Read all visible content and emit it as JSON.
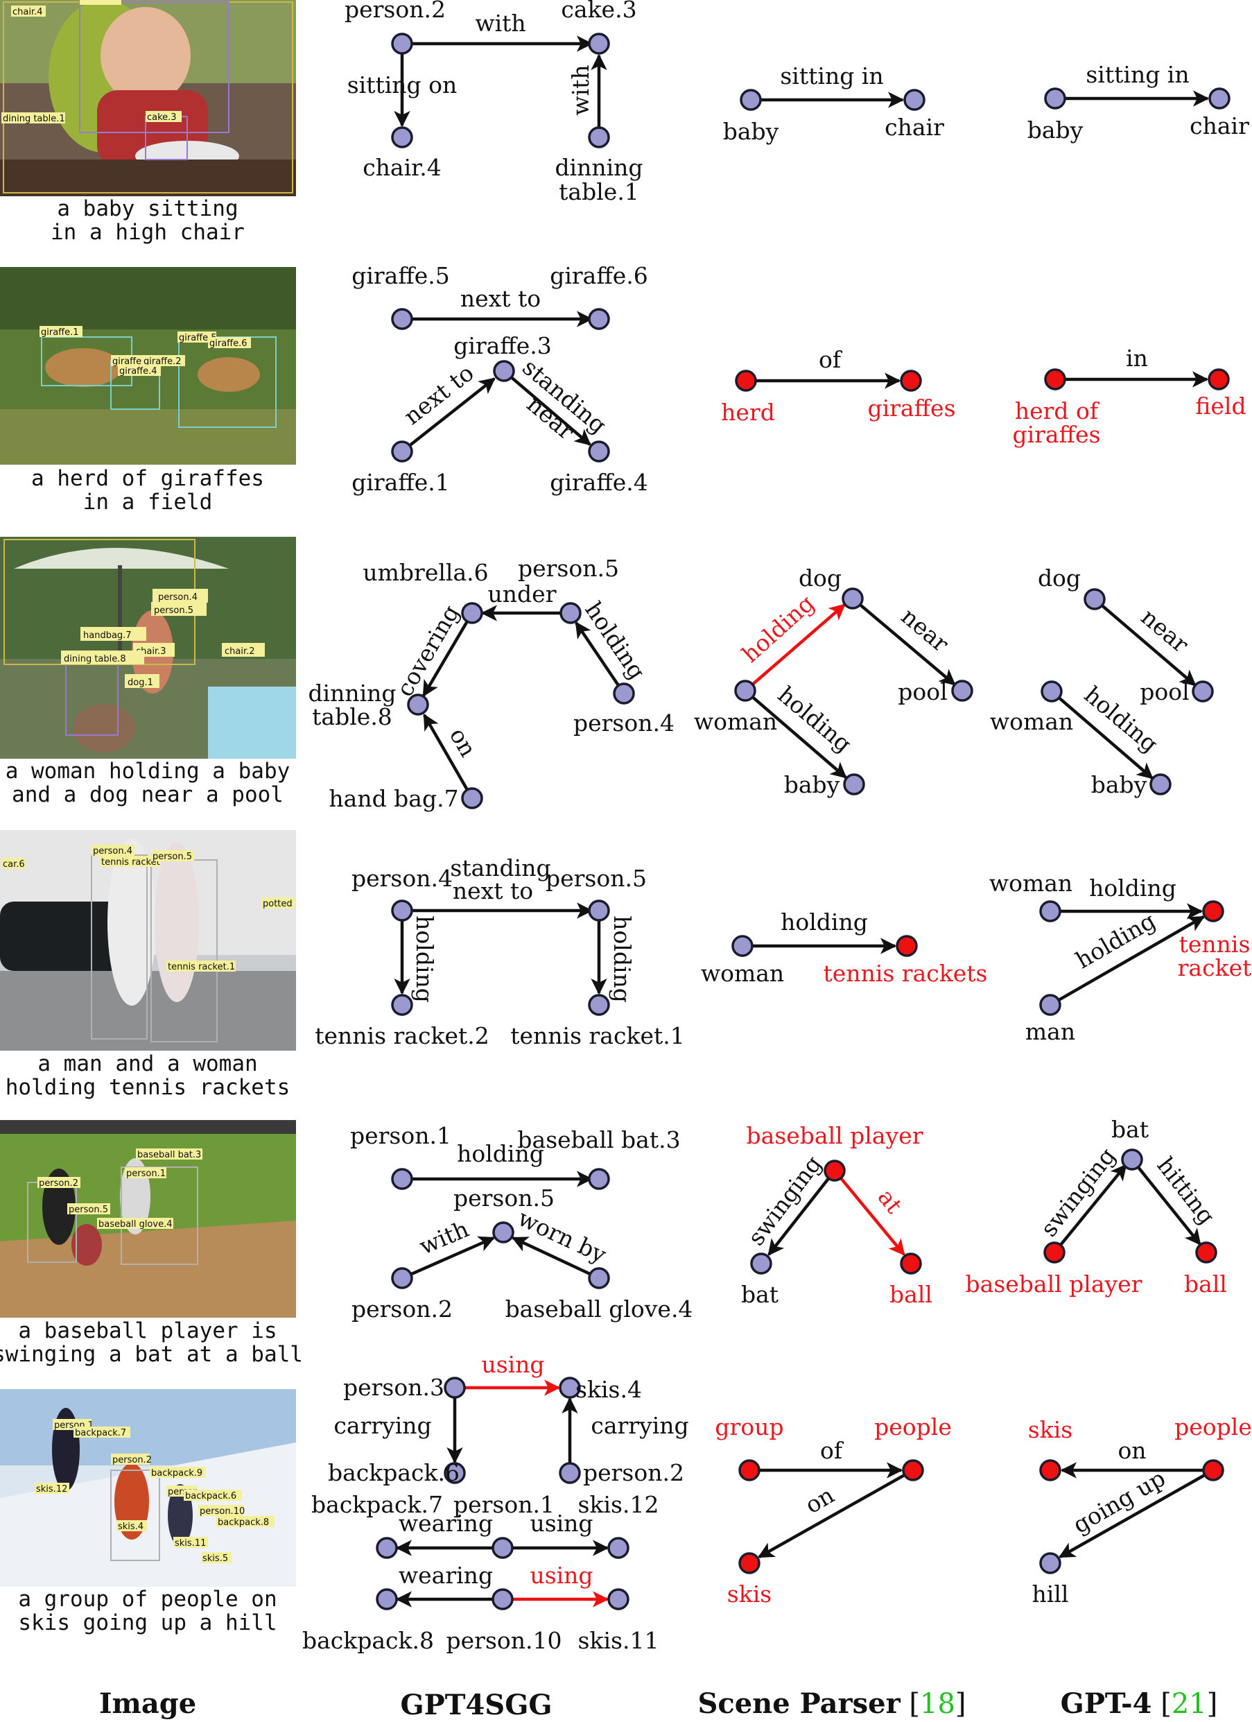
{
  "column_headers": {
    "image": "Image",
    "gpt4sgg": "GPT4SGG",
    "scene_parser": "Scene Parser",
    "scene_parser_ref": "18",
    "gpt4": "GPT-4",
    "gpt4_ref": "21"
  },
  "rows": [
    {
      "caption": [
        "a baby sitting",
        "in a high chair"
      ],
      "photo_tags": [
        "chair.4",
        "person.2",
        "dining table.1",
        "cake.3"
      ],
      "gpt4sgg": {
        "labels": [
          "person.2",
          "cake.3",
          "chair.4",
          "dinning",
          "table.1"
        ],
        "edges": [
          "with",
          "sitting on",
          "with"
        ]
      },
      "scene_parser": {
        "labels": [
          "baby",
          "chair"
        ],
        "edges": [
          "sitting in"
        ]
      },
      "gpt4": {
        "labels": [
          "baby",
          "chair"
        ],
        "edges": [
          "sitting in"
        ]
      }
    },
    {
      "caption": [
        "a herd of giraffes",
        "in a field"
      ],
      "photo_tags": [
        "giraffe.1",
        "giraffe.5",
        "giraffe.6",
        "giraffe.3",
        "giraffe.2",
        "giraffe.4"
      ],
      "gpt4sgg": {
        "labels": [
          "giraffe.5",
          "giraffe.6",
          "giraffe.3",
          "giraffe.1",
          "giraffe.4"
        ],
        "edges": [
          "next to",
          "next to",
          "standing",
          "near"
        ]
      },
      "scene_parser": {
        "labels": [
          "herd",
          "giraffes"
        ],
        "edges": [
          "of"
        ]
      },
      "gpt4": {
        "labels": [
          "herd of",
          "giraffes",
          "field"
        ],
        "edges": [
          "in"
        ]
      }
    },
    {
      "caption": [
        "a woman holding a baby",
        "and a dog near a pool"
      ],
      "photo_tags": [
        "person.4",
        "person.5",
        "handbag.7",
        "chair.3",
        "dining table.8",
        "chair.2",
        "dog.1"
      ],
      "gpt4sgg": {
        "labels": [
          "umbrella.6",
          "person.5",
          "dinning",
          "table.8",
          "person.4",
          "hand bag.7"
        ],
        "edges": [
          "under",
          "covering",
          "holding",
          "on"
        ]
      },
      "scene_parser": {
        "labels": [
          "dog",
          "woman",
          "pool",
          "baby"
        ],
        "edges": [
          "holding",
          "near",
          "holding"
        ]
      },
      "gpt4": {
        "labels": [
          "dog",
          "woman",
          "pool",
          "baby"
        ],
        "edges": [
          "near",
          "holding"
        ]
      }
    },
    {
      "caption": [
        "a man and a woman",
        "holding tennis rackets"
      ],
      "photo_tags": [
        "car.6",
        "person.4",
        "tennis racket",
        "person.5",
        "potted",
        "tennis racket.1"
      ],
      "gpt4sgg": {
        "labels": [
          "person.4",
          "person.5",
          "tennis racket.2",
          "tennis racket.1"
        ],
        "edges": [
          "standing",
          "next to",
          "holding",
          "holding"
        ]
      },
      "scene_parser": {
        "labels": [
          "woman",
          "tennis rackets"
        ],
        "edges": [
          "holding"
        ]
      },
      "gpt4": {
        "labels": [
          "woman",
          "tennis",
          "racket",
          "man"
        ],
        "edges": [
          "holding",
          "holding"
        ]
      }
    },
    {
      "caption": [
        "a baseball player is",
        "swinging a bat at a ball"
      ],
      "photo_tags": [
        "baseball bat.3",
        "person.1",
        "person.2",
        "person.5",
        "baseball glove.4"
      ],
      "gpt4sgg": {
        "labels": [
          "person.1",
          "baseball bat.3",
          "person.5",
          "person.2",
          "baseball glove.4"
        ],
        "edges": [
          "holding",
          "with",
          "worn by"
        ]
      },
      "scene_parser": {
        "labels": [
          "baseball player",
          "bat",
          "ball"
        ],
        "edges": [
          "swinging",
          "at"
        ]
      },
      "gpt4": {
        "labels": [
          "bat",
          "baseball player",
          "ball"
        ],
        "edges": [
          "swinging",
          "hitting"
        ]
      }
    },
    {
      "caption": [
        "a group of people on",
        "skis going up a hill"
      ],
      "photo_tags": [
        "person.1",
        "backpack.7",
        "person.2",
        "backpack.9",
        "person",
        "backpack.6",
        "person.10",
        "skis.12",
        "skis.4",
        "backpack.8",
        "skis.11",
        "skis.5"
      ],
      "gpt4sgg": {
        "labels": [
          "person.3",
          "skis.4",
          "backpack.6",
          "person.2",
          "backpack.7",
          "person.1",
          "skis.12",
          "backpack.8",
          "person.10",
          "skis.11"
        ],
        "edges": [
          "using",
          "carrying",
          "carrying",
          "wearing",
          "using",
          "wearing",
          "using"
        ]
      },
      "scene_parser": {
        "labels": [
          "group",
          "people",
          "skis"
        ],
        "edges": [
          "of",
          "on"
        ]
      },
      "gpt4": {
        "labels": [
          "skis",
          "people",
          "hill"
        ],
        "edges": [
          "on",
          "going up"
        ]
      }
    }
  ]
}
